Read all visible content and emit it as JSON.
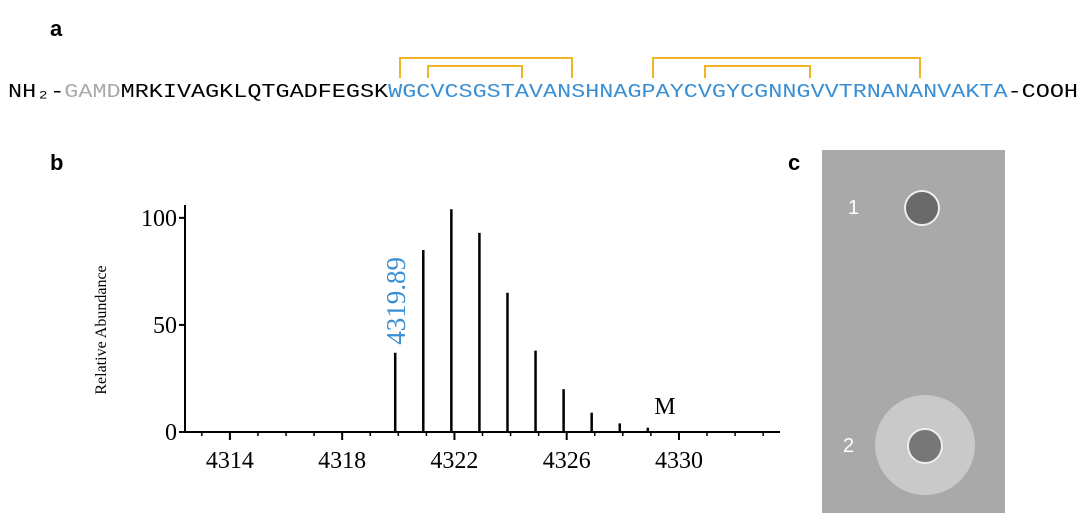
{
  "panel_labels": [
    "a",
    "b",
    "c"
  ],
  "sequence": {
    "n_terminus": "NH₂-",
    "tag": "GAMD",
    "leader": "MRKIVAGKLQTGADFEGSK",
    "core": "WGCVCSGSTAVANSHNAGPAYCVGYCGNNGVVTRNANANVAKTA",
    "c_terminus": "-COOH"
  },
  "chart_data": {
    "type": "bar",
    "ylabel": "Relative Abundance",
    "x": [
      4319.89,
      4320.89,
      4321.89,
      4322.89,
      4323.89,
      4324.89,
      4325.89,
      4326.89,
      4327.89,
      4328.89
    ],
    "values": [
      37,
      85,
      104,
      93,
      65,
      38,
      20,
      9,
      4,
      2
    ],
    "color": "#000000",
    "annotations": [
      {
        "text": "4319.89",
        "x": 4319.89,
        "color": "#3a8fd4"
      },
      {
        "text": "M",
        "x": 4329.5
      }
    ],
    "xlim": [
      4312.4,
      4333.6
    ],
    "xticks": [
      4314,
      4318,
      4322,
      4326,
      4330
    ],
    "xminorticks": [
      4313,
      4315,
      4316,
      4317,
      4319,
      4320,
      4321,
      4323,
      4324,
      4325,
      4327,
      4328,
      4329,
      4331,
      4332,
      4333
    ],
    "ylim": [
      0,
      106
    ],
    "yticks": [
      0,
      50,
      100
    ]
  },
  "plate": {
    "wells": [
      "1",
      "2"
    ]
  }
}
